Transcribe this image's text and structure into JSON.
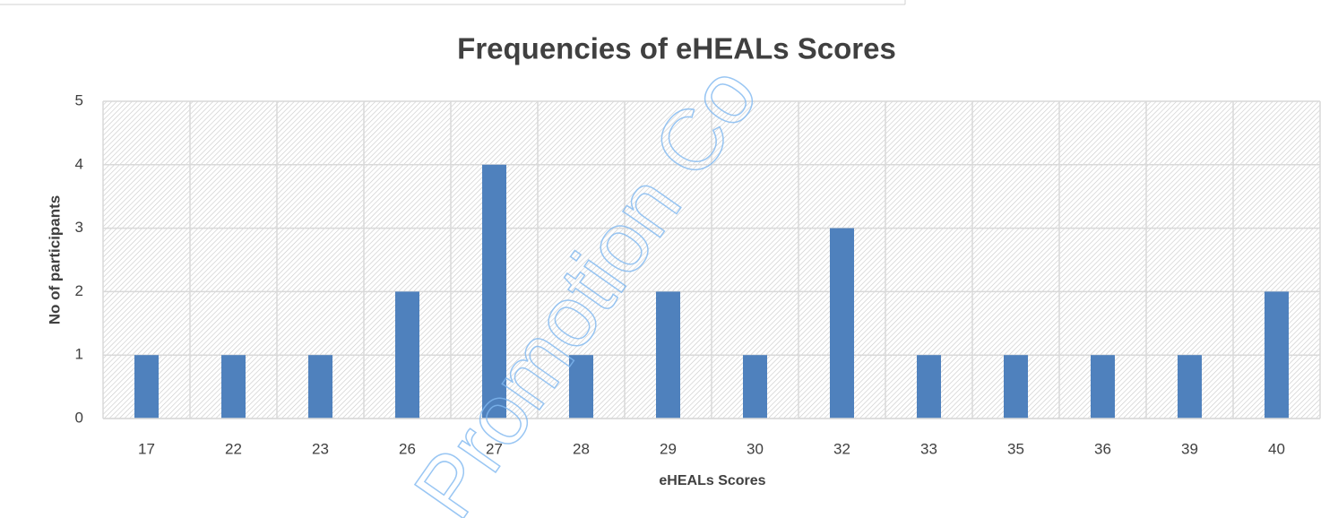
{
  "chart_data": {
    "type": "bar",
    "title": "Frequencies of eHEALs Scores",
    "x_label": "eHEALs Scores",
    "y_label": "No of participants",
    "categories": [
      "17",
      "22",
      "23",
      "26",
      "27",
      "28",
      "29",
      "30",
      "32",
      "33",
      "35",
      "36",
      "39",
      "40"
    ],
    "values": [
      1,
      1,
      1,
      2,
      4,
      1,
      2,
      1,
      3,
      1,
      1,
      1,
      1,
      2
    ],
    "color": "#4f81bd",
    "ylim": [
      0,
      5
    ],
    "yticks": [
      0,
      1,
      2,
      3,
      4,
      5
    ],
    "grid": true,
    "watermark": "Promotion Co"
  }
}
